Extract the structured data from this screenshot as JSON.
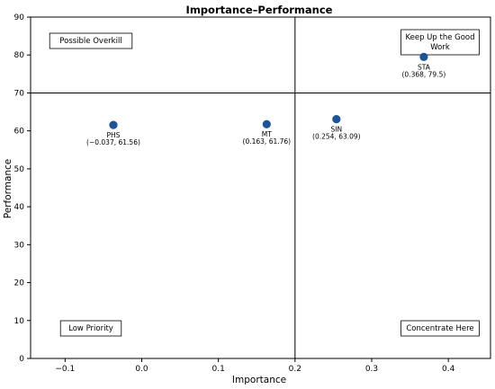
{
  "chart_data": {
    "type": "scatter",
    "title": "Importance–Performance",
    "xlabel": "Importance",
    "ylabel": "Performance",
    "xlim": [
      -0.145,
      0.455
    ],
    "ylim": [
      0,
      90
    ],
    "xticks": [
      -0.1,
      0.0,
      0.1,
      0.2,
      0.3,
      0.4
    ],
    "xtick_labels": [
      "−0.1",
      "0.0",
      "0.1",
      "0.2",
      "0.3",
      "0.4"
    ],
    "yticks": [
      0,
      10,
      20,
      30,
      40,
      50,
      60,
      70,
      80,
      90
    ],
    "ytick_labels": [
      "0",
      "10",
      "20",
      "30",
      "40",
      "50",
      "60",
      "70",
      "80",
      "90"
    ],
    "grid": false,
    "reference_lines": {
      "x": 0.2,
      "y": 70
    },
    "marker_color": "#1f5494",
    "points": [
      {
        "name": "PHS",
        "x": -0.037,
        "y": 61.56,
        "coord_label": "(−0.037, 61.56)"
      },
      {
        "name": "MT",
        "x": 0.163,
        "y": 61.76,
        "coord_label": "(0.163, 61.76)"
      },
      {
        "name": "SIN",
        "x": 0.254,
        "y": 63.09,
        "coord_label": "(0.254, 63.09)"
      },
      {
        "name": "STA",
        "x": 0.368,
        "y": 79.5,
        "coord_label": "(0.368, 79.5)"
      }
    ],
    "quadrant_labels": [
      {
        "id": "possible-overkill",
        "lines": [
          "Possible Overkill"
        ]
      },
      {
        "id": "keep-up-the-good-work",
        "lines": [
          "Keep Up the Good",
          "Work"
        ]
      },
      {
        "id": "low-priority",
        "lines": [
          "Low Priority"
        ]
      },
      {
        "id": "concentrate-here",
        "lines": [
          "Concentrate Here"
        ]
      }
    ]
  }
}
